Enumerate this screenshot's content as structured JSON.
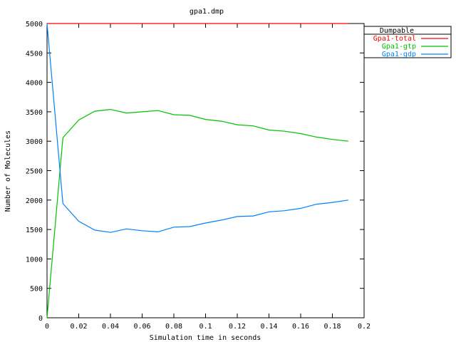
{
  "chart_data": {
    "type": "line",
    "title": "gpa1.dmp",
    "xlabel": "Simulation time in seconds",
    "ylabel": "Number of Molecules",
    "xlim": [
      0,
      0.2
    ],
    "ylim": [
      0,
      5000
    ],
    "x_ticks": [
      0,
      0.02,
      0.04,
      0.06,
      0.08,
      0.1,
      0.12,
      0.14,
      0.16,
      0.18,
      0.2
    ],
    "x_tick_labels": [
      "0",
      "0.02",
      "0.04",
      "0.06",
      "0.08",
      "0.1",
      "0.12",
      "0.14",
      "0.16",
      "0.18",
      "0.2"
    ],
    "y_ticks": [
      0,
      500,
      1000,
      1500,
      2000,
      2500,
      3000,
      3500,
      4000,
      4500,
      5000
    ],
    "y_tick_labels": [
      "0",
      "500",
      "1000",
      "1500",
      "2000",
      "2500",
      "3000",
      "3500",
      "4000",
      "4500",
      "5000"
    ],
    "grid": false,
    "legend": {
      "title": "Dumpable",
      "placement": "outside-top-right"
    },
    "x": [
      0,
      0.01,
      0.02,
      0.03,
      0.04,
      0.05,
      0.06,
      0.07,
      0.08,
      0.09,
      0.1,
      0.11,
      0.12,
      0.13,
      0.14,
      0.15,
      0.16,
      0.17,
      0.18,
      0.19
    ],
    "series": [
      {
        "name": "Gpa1-total",
        "color": "#ff0000",
        "values": [
          5000,
          5000,
          5000,
          5000,
          5000,
          5000,
          5000,
          5000,
          5000,
          5000,
          5000,
          5000,
          5000,
          5000,
          5000,
          5000,
          5000,
          5000,
          5000,
          5000
        ]
      },
      {
        "name": "Gpa1-gtp",
        "color": "#00c000",
        "values": [
          0,
          3060,
          3360,
          3510,
          3540,
          3480,
          3500,
          3520,
          3450,
          3440,
          3370,
          3340,
          3280,
          3260,
          3190,
          3170,
          3130,
          3070,
          3030,
          3000
        ]
      },
      {
        "name": "Gpa1-gdp",
        "color": "#0080ff",
        "values": [
          5000,
          1940,
          1640,
          1490,
          1450,
          1510,
          1480,
          1460,
          1540,
          1550,
          1610,
          1660,
          1720,
          1730,
          1800,
          1820,
          1860,
          1930,
          1960,
          2000
        ]
      }
    ]
  }
}
